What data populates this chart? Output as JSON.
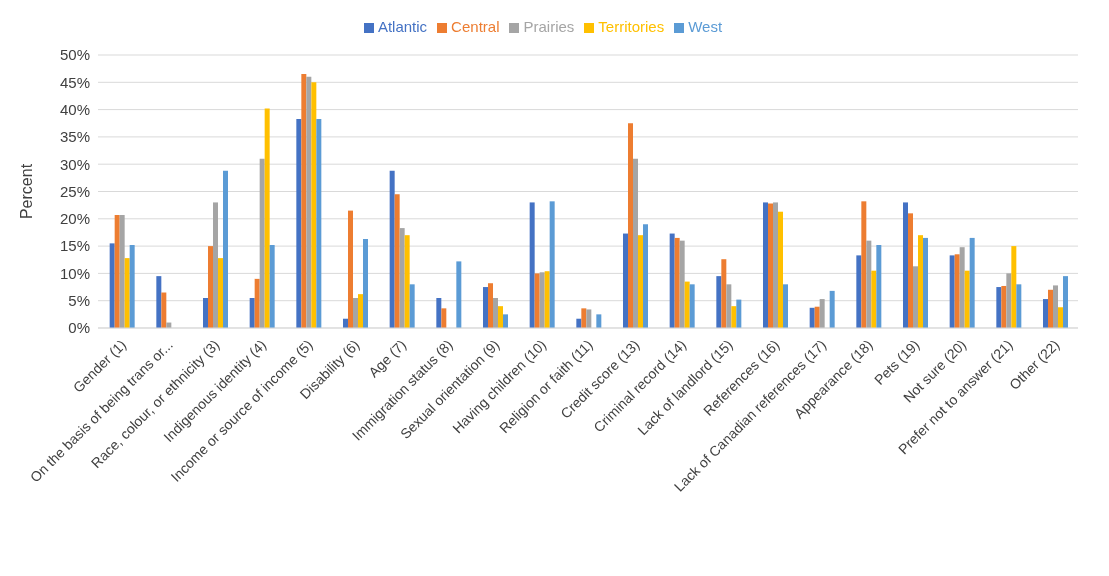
{
  "chart_data": {
    "type": "bar",
    "ylabel": "Percent",
    "categories": [
      "Gender  (1)",
      "On the basis of being trans or...",
      "Race, colour, or ethnicity  (3)",
      "Indigenous identity  (4)",
      "Income or source of income  (5)",
      "Disability  (6)",
      "Age  (7)",
      "Immigration status  (8)",
      "Sexual orientation  (9)",
      "Having children  (10)",
      "Religion or faith  (11)",
      "Credit score  (13)",
      "Criminal record  (14)",
      "Lack of landlord  (15)",
      "References  (16)",
      "Lack of Canadian references  (17)",
      "Appearance  (18)",
      "Pets  (19)",
      "Not sure  (20)",
      "Prefer not to answer  (21)",
      "Other  (22)"
    ],
    "series": [
      {
        "name": "Atlantic",
        "color": "#4472c4",
        "values": [
          15.5,
          9.5,
          5.5,
          5.5,
          38.3,
          1.7,
          28.8,
          5.5,
          7.5,
          23,
          1.7,
          17.3,
          17.3,
          9.5,
          23,
          3.7,
          13.3,
          23,
          13.3,
          7.5,
          5.3
        ]
      },
      {
        "name": "Central",
        "color": "#ed7d31",
        "values": [
          20.7,
          6.5,
          15,
          9,
          46.5,
          21.5,
          24.5,
          3.6,
          8.2,
          10,
          3.6,
          37.5,
          16.5,
          12.6,
          22.8,
          3.9,
          23.2,
          21,
          13.5,
          7.7,
          7
        ]
      },
      {
        "name": "Prairies",
        "color": "#a5a5a5",
        "values": [
          20.7,
          1,
          23,
          31,
          46,
          5.5,
          18.3,
          null,
          5.5,
          10.2,
          3.4,
          31,
          16,
          8,
          23,
          5.3,
          16,
          11.3,
          14.8,
          10,
          7.8
        ]
      },
      {
        "name": "Territories",
        "color": "#ffc000",
        "values": [
          12.8,
          null,
          12.8,
          40.2,
          45,
          6.2,
          17,
          null,
          4,
          10.4,
          null,
          17,
          8.5,
          4,
          21.3,
          null,
          10.5,
          17,
          10.5,
          15,
          3.8
        ]
      },
      {
        "name": "West",
        "color": "#5b9bd5",
        "values": [
          15.2,
          null,
          28.8,
          15.2,
          38.3,
          16.3,
          8,
          12.2,
          2.5,
          23.2,
          2.5,
          19,
          8,
          5.2,
          8,
          6.8,
          15.2,
          16.5,
          16.5,
          8,
          9.5
        ]
      }
    ],
    "ylim": [
      0,
      50
    ],
    "yticks": [
      {
        "value": 0,
        "label": "0%"
      },
      {
        "value": 5,
        "label": "5%"
      },
      {
        "value": 10,
        "label": "10%"
      },
      {
        "value": 15,
        "label": "15%"
      },
      {
        "value": 20,
        "label": "20%"
      },
      {
        "value": 25,
        "label": "25%"
      },
      {
        "value": 30,
        "label": "30%"
      },
      {
        "value": 35,
        "label": "35%"
      },
      {
        "value": 40,
        "label": "40%"
      },
      {
        "value": 45,
        "label": "45%"
      },
      {
        "value": 50,
        "label": "50%"
      }
    ],
    "grid": "y",
    "legend": "top"
  }
}
